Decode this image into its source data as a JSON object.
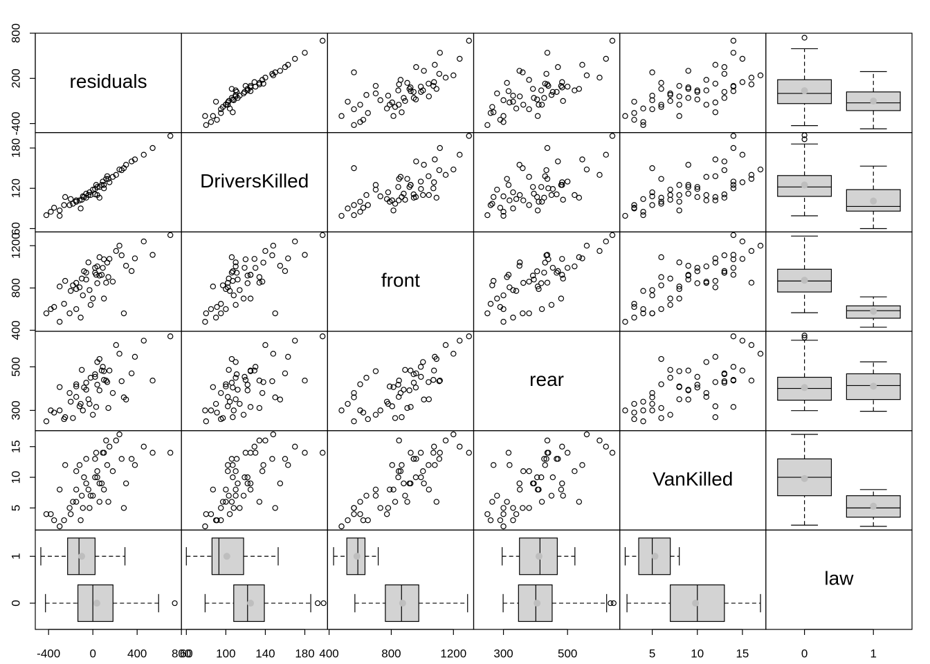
{
  "chart_data": {
    "type": "scatter-matrix",
    "variables": [
      {
        "name": "residuals",
        "lim": [
          -520,
          800
        ],
        "xticks": [
          -400,
          0,
          400,
          800
        ],
        "yticks": [
          -400,
          200,
          800
        ],
        "values": [
          -250,
          -180,
          -120,
          -300,
          20,
          -60,
          40,
          60,
          -80,
          120,
          260,
          540,
          30,
          140,
          -40,
          -150,
          -100,
          20,
          100,
          150,
          60,
          40,
          80,
          380,
          -200,
          -350,
          -90,
          210,
          460,
          300,
          -420,
          0,
          180,
          -30,
          90,
          -260,
          240,
          -150,
          350,
          700,
          -60,
          130,
          -380,
          -210,
          -110,
          -20,
          100,
          -300,
          -150,
          280
        ],
        "boxes": [
          {
            "min": -428,
            "q1": -135,
            "median": 0,
            "q3": 182,
            "max": 594,
            "mean": 36,
            "outliers": [
              740
            ]
          },
          {
            "min": -470,
            "q1": -228,
            "median": -125,
            "q3": 20,
            "max": 290,
            "mean": -101,
            "outliers": []
          }
        ]
      },
      {
        "name": "DriversKilled",
        "lim": [
          55,
          203
        ],
        "xticks": [
          60,
          100,
          140,
          180
        ],
        "yticks": [
          60,
          120,
          180
        ],
        "values": [
          107,
          97,
          102,
          87,
          119,
          106,
          110,
          106,
          107,
          134,
          147,
          180,
          125,
          134,
          110,
          102,
          103,
          111,
          120,
          129,
          122,
          122,
          125,
          163,
          104,
          91,
          108,
          140,
          170,
          155,
          80,
          118,
          137,
          114,
          130,
          95,
          148,
          100,
          160,
          198,
          112,
          138,
          85,
          95,
          90,
          110,
          125,
          79,
          100,
          150
        ],
        "boxes": [
          {
            "min": 79,
            "q1": 108,
            "median": 122,
            "q3": 139,
            "max": 186,
            "mean": 125,
            "outliers": [
              193,
              199
            ]
          },
          {
            "min": 60,
            "q1": 86,
            "median": 93,
            "q3": 118,
            "max": 153,
            "mean": 101,
            "outliers": []
          }
        ]
      },
      {
        "name": "front",
        "lim": [
          390,
          1330
        ],
        "xticks": [
          400,
          800,
          1200
        ],
        "yticks": [
          400,
          800,
          1200
        ],
        "values": [
          867,
          825,
          806,
          814,
          991,
          945,
          1004,
          1091,
          958,
          850,
          1109,
          1113,
          925,
          903,
          1042,
          848,
          889,
          944,
          1071,
          1075,
          917,
          845,
          924,
          1080,
          772,
          620,
          730,
          1150,
          1240,
          1010,
          560,
          700,
          860,
          780,
          990,
          650,
          1200,
          790,
          960,
          1300,
          880,
          1040,
          600,
          560,
          520,
          640,
          700,
          480,
          600,
          560
        ],
        "boxes": [
          {
            "min": 566,
            "q1": 762,
            "median": 866,
            "q3": 977,
            "max": 1291,
            "mean": 873,
            "outliers": []
          },
          {
            "min": 429,
            "q1": 514,
            "median": 585,
            "q3": 631,
            "max": 716,
            "mean": 579,
            "outliers": []
          }
        ]
      },
      {
        "name": "rear",
        "lim": [
          207,
          663
        ],
        "xticks": [
          300,
          500
        ],
        "yticks": [
          300,
          500
        ],
        "values": [
          269,
          265,
          319,
          407,
          454,
          427,
          522,
          536,
          405,
          437,
          434,
          437,
          316,
          311,
          351,
          362,
          486,
          466,
          440,
          483,
          392,
          418,
          483,
          546,
          340,
          290,
          300,
          600,
          620,
          350,
          250,
          280,
          380,
          330,
          500,
          260,
          560,
          410,
          470,
          640,
          395,
          430,
          300,
          380,
          330,
          450,
          480,
          300,
          420,
          360
        ],
        "boxes": [
          {
            "min": 299,
            "q1": 347,
            "median": 401,
            "q3": 452,
            "max": 622,
            "mean": 405,
            "outliers": [
              634,
              644
            ]
          },
          {
            "min": 296,
            "q1": 350,
            "median": 414,
            "q3": 468,
            "max": 523,
            "mean": 411,
            "outliers": []
          }
        ]
      },
      {
        "name": "VanKilled",
        "lim": [
          1.4,
          17.6
        ],
        "xticks": [
          5,
          10,
          15
        ],
        "yticks": [
          5,
          10,
          15
        ],
        "values": [
          12,
          6,
          12,
          8,
          10,
          13,
          11,
          6,
          10,
          16,
          13,
          14,
          14,
          6,
          8,
          11,
          7,
          13,
          14,
          15,
          9,
          10,
          9,
          12,
          4,
          3,
          5,
          16,
          15,
          9,
          4,
          7,
          11,
          5,
          14,
          3,
          17,
          8,
          13,
          14,
          9,
          12,
          4,
          5,
          3,
          7,
          8,
          2,
          6,
          5
        ],
        "boxes": [
          {
            "min": 2.2,
            "q1": 7,
            "median": 10,
            "q3": 13,
            "max": 17,
            "mean": 9.8,
            "outliers": []
          },
          {
            "min": 2,
            "q1": 3.5,
            "median": 5,
            "q3": 7,
            "max": 8,
            "mean": 5.3,
            "outliers": []
          }
        ]
      },
      {
        "name": "law",
        "lim": [
          -0.56,
          1.56
        ],
        "categories": [
          "0",
          "1"
        ]
      }
    ]
  }
}
